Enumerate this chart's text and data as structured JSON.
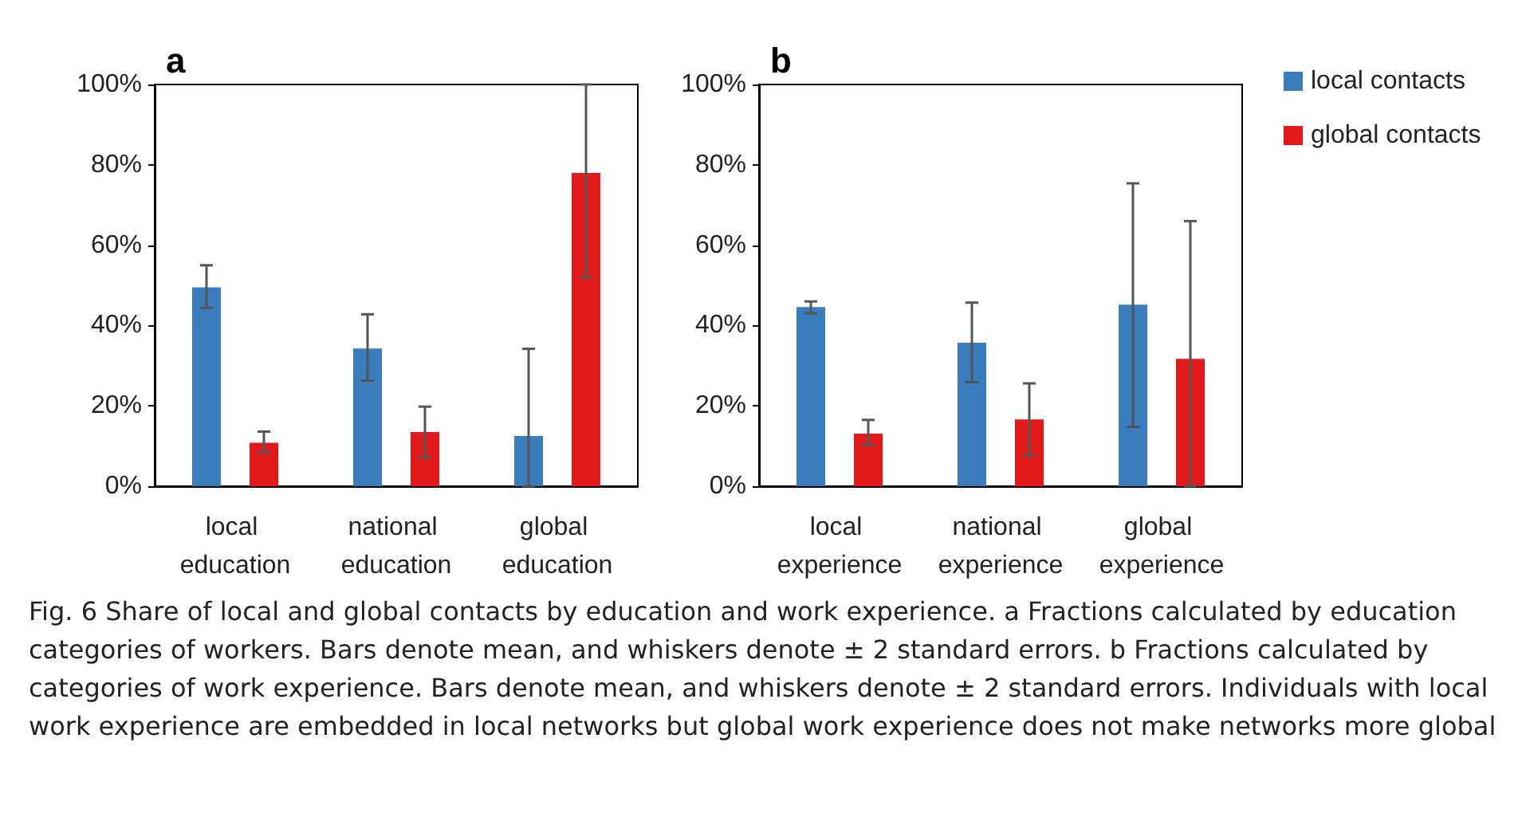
{
  "chart_data": [
    {
      "type": "bar",
      "title": "a",
      "categories": [
        "local education",
        "national education",
        "global education"
      ],
      "series": [
        {
          "color": "#3a7dbf",
          "values": [
            49.5,
            34.3,
            12.5
          ],
          "errors": [
            [
              44.4,
              55
            ],
            [
              26.3,
              42.8
            ],
            [
              0,
              34.2
            ]
          ]
        },
        {
          "color": "#e31a1c",
          "values": [
            10.8,
            13.5,
            78
          ],
          "errors": [
            [
              8.5,
              13.6
            ],
            [
              7.1,
              19.8
            ],
            [
              52,
              100
            ]
          ]
        }
      ],
      "ylim": [
        0,
        100
      ],
      "yticks": [
        {
          "value": 0,
          "label": "0%"
        },
        {
          "value": 20,
          "label": "20%"
        },
        {
          "value": 40,
          "label": "40%"
        },
        {
          "value": 60,
          "label": "60%"
        },
        {
          "value": 80,
          "label": "80%"
        },
        {
          "value": 100,
          "label": "100%"
        }
      ],
      "grid": false,
      "legend": false,
      "annotations": [
        "Fig. 6 Share of local and global contacts by education and work experience. a Fractions calculated by education categories of workers. Bars denote mean, and whiskers denote ± 2 standard errors. b Fractions calculated by categories of work experience. Bars denote mean, and whiskers denote ± 2 standard errors. Individuals with local work experience are embedded in local networks but global work experience does not make networks more global"
      ]
    },
    {
      "type": "bar",
      "title": "b",
      "categories": [
        "local experience",
        "national experience",
        "global experience"
      ],
      "series": [
        {
          "name": "local contacts",
          "color": "#3a7dbf",
          "values": [
            44.6,
            35.7,
            45.2
          ],
          "errors": [
            [
              43,
              46
            ],
            [
              25.9,
              45.7
            ],
            [
              14.8,
              75.4
            ]
          ]
        },
        {
          "name": "global contacts",
          "color": "#e31a1c",
          "values": [
            13.1,
            16.6,
            31.7
          ],
          "errors": [
            [
              10.2,
              16.5
            ],
            [
              7.7,
              25.6
            ],
            [
              0,
              66
            ]
          ]
        }
      ],
      "ylim": [
        0,
        100
      ],
      "yticks": [
        {
          "value": 0,
          "label": "0%"
        },
        {
          "value": 20,
          "label": "20%"
        },
        {
          "value": 40,
          "label": "40%"
        },
        {
          "value": 60,
          "label": "60%"
        },
        {
          "value": 80,
          "label": "80%"
        },
        {
          "value": 100,
          "label": "100%"
        }
      ],
      "grid": false,
      "legend": "right"
    }
  ]
}
